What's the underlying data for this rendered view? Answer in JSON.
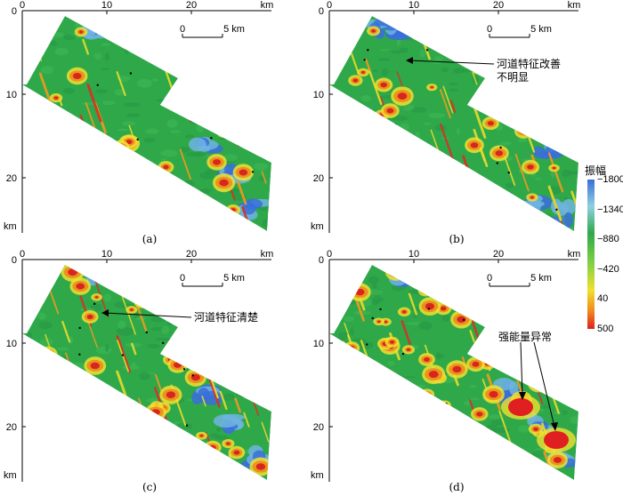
{
  "panels": [
    {
      "id": "a",
      "caption": "(a)",
      "annotation": ""
    },
    {
      "id": "b",
      "caption": "(b)",
      "annotation": [
        "河道特征改善",
        "不明显"
      ]
    },
    {
      "id": "c",
      "caption": "(c)",
      "annotation": [
        "河道特征清楚"
      ]
    },
    {
      "id": "d",
      "caption": "(d)",
      "annotation": [
        "强能量异常"
      ]
    }
  ],
  "axes": {
    "unit": "km",
    "x_ticks": [
      "0",
      "10",
      "20"
    ],
    "y_ticks": [
      "0",
      "10",
      "20"
    ]
  },
  "scale_bar": {
    "start": "0",
    "end": "5 km"
  },
  "colorbar": {
    "title": "振幅",
    "labels": [
      "−1800",
      "−1340",
      "−880",
      "−420",
      "40",
      "500"
    ],
    "colors": [
      "#3a6fd8",
      "#8fd0e0",
      "#2fa84a",
      "#9ad24a",
      "#f0e030",
      "#e02020"
    ]
  }
}
